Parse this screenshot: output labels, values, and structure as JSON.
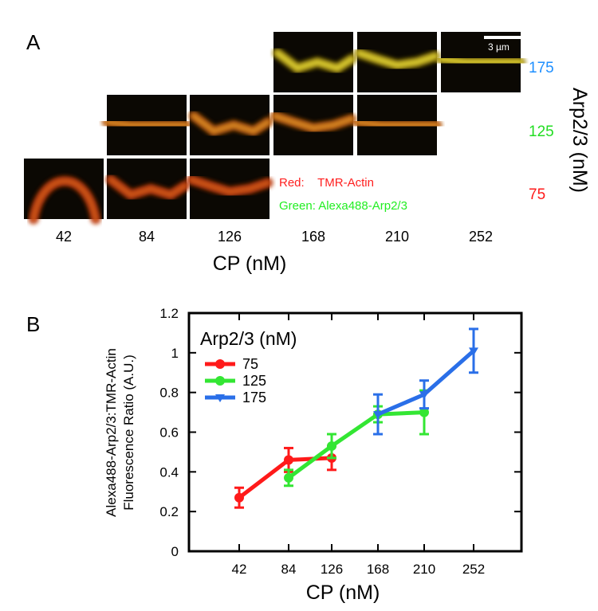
{
  "panel_a": {
    "letter": "A",
    "scale_bar_label": "3 µm",
    "legend_red": "Red:    TMR-Actin",
    "legend_green": "Green: Alexa488-Arp2/3",
    "row_axis_title": "Arp2/3 (nM)",
    "col_axis_title": "CP (nM)",
    "cp_values": [
      "42",
      "84",
      "126",
      "168",
      "210",
      "252"
    ],
    "rows": [
      {
        "label": "175",
        "color": "#1e8fff",
        "columns": [
          3,
          4,
          5
        ]
      },
      {
        "label": "125",
        "color": "#22dd22",
        "columns": [
          1,
          2,
          3,
          4
        ]
      },
      {
        "label": "75",
        "color": "#ff1a1a",
        "columns": [
          0,
          1,
          2
        ]
      }
    ]
  },
  "panel_b": {
    "letter": "B",
    "chart_data": {
      "type": "line",
      "legend_title": "Arp2/3 (nM)",
      "legend_position": "top-left",
      "xlabel": "CP (nM)",
      "ylabel": [
        "Alexa488-Arp2/3:TMR-Actin",
        "Fluorescence Ratio (A.U.)"
      ],
      "xticks": [
        "42",
        "84",
        "126",
        "168",
        "210",
        "252"
      ],
      "ylim": [
        0,
        1.2
      ],
      "yticks": [
        "0",
        "0.2",
        "0.4",
        "0.6",
        "0.8",
        "1",
        "1.2"
      ],
      "grid": false,
      "series": [
        {
          "name": "75",
          "color": "#ff1a1a",
          "marker": "circle",
          "x": [
            42,
            84,
            126
          ],
          "y": [
            0.27,
            0.46,
            0.47
          ],
          "err": [
            0.05,
            0.06,
            0.06
          ]
        },
        {
          "name": "125",
          "color": "#33e633",
          "marker": "circle",
          "x": [
            84,
            126,
            168,
            210
          ],
          "y": [
            0.37,
            0.53,
            0.69,
            0.7
          ],
          "err": [
            0.04,
            0.06,
            0.04,
            0.11
          ]
        },
        {
          "name": "175",
          "color": "#2a6fe8",
          "marker": "triangle-down",
          "x": [
            168,
            210,
            252
          ],
          "y": [
            0.69,
            0.79,
            1.01
          ],
          "err": [
            0.1,
            0.07,
            0.11
          ]
        }
      ]
    }
  }
}
